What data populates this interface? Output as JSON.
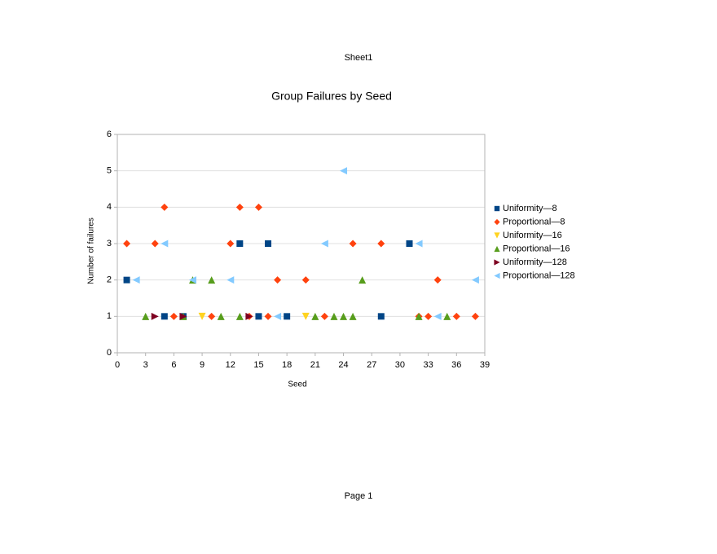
{
  "page": {
    "header": "Sheet1",
    "footer": "Page 1"
  },
  "chart_data": {
    "type": "scatter",
    "title": "Group Failures by Seed",
    "x_label": "Seed",
    "y_label": "Number of failures",
    "xlim": [
      0,
      39
    ],
    "xticks": [
      0,
      3,
      6,
      9,
      12,
      15,
      18,
      21,
      24,
      27,
      30,
      33,
      36,
      39
    ],
    "ylim": [
      0,
      6
    ],
    "yticks": [
      0,
      1,
      2,
      3,
      4,
      5,
      6
    ],
    "grid": true,
    "legend": "right",
    "series": [
      {
        "name": "Uniformity—8",
        "color": "#004586",
        "marker": "square",
        "x": [
          1,
          5,
          7,
          13,
          15,
          16,
          18,
          28,
          31
        ],
        "values": [
          2,
          1,
          1,
          3,
          1,
          3,
          1,
          1,
          3
        ]
      },
      {
        "name": "Proportional—8",
        "color": "#ff420e",
        "marker": "diamond",
        "x": [
          1,
          4,
          5,
          6,
          10,
          12,
          13,
          14,
          15,
          16,
          17,
          20,
          22,
          25,
          28,
          32,
          33,
          34,
          36,
          38
        ],
        "values": [
          3,
          3,
          4,
          1,
          1,
          3,
          4,
          1,
          4,
          1,
          2,
          2,
          1,
          3,
          3,
          1,
          1,
          2,
          1,
          1
        ]
      },
      {
        "name": "Uniformity—16",
        "color": "#ffd320",
        "marker": "down",
        "x": [
          9,
          20
        ],
        "values": [
          1,
          1
        ]
      },
      {
        "name": "Proportional—16",
        "color": "#579d1c",
        "marker": "up",
        "x": [
          3,
          7,
          8,
          10,
          11,
          13,
          21,
          23,
          24,
          25,
          26,
          32,
          35
        ],
        "values": [
          1,
          1,
          2,
          2,
          1,
          1,
          1,
          1,
          1,
          1,
          2,
          1,
          1
        ]
      },
      {
        "name": "Uniformity—128",
        "color": "#7e0021",
        "marker": "right",
        "x": [
          4,
          7,
          14
        ],
        "values": [
          1,
          1,
          1
        ]
      },
      {
        "name": "Proportional—128",
        "color": "#83caff",
        "marker": "left",
        "x": [
          2,
          5,
          8,
          12,
          17,
          22,
          24,
          32,
          34,
          38
        ],
        "values": [
          2,
          3,
          2,
          2,
          1,
          3,
          5,
          3,
          1,
          2
        ]
      }
    ]
  }
}
